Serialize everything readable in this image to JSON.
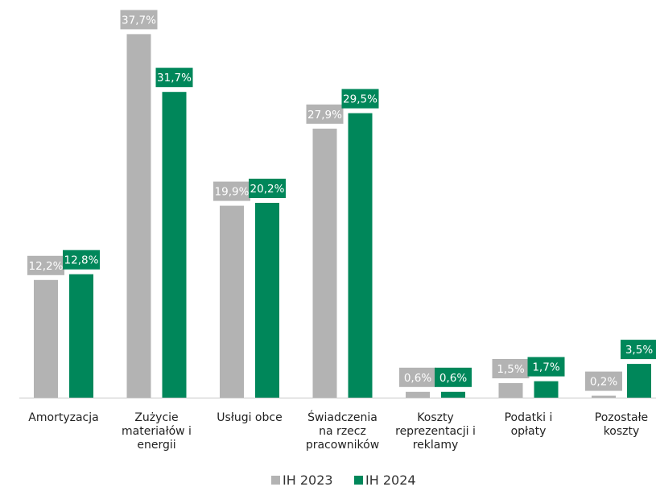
{
  "chart_data": {
    "type": "bar",
    "categories": [
      [
        "Amortyzacja"
      ],
      [
        "Zużycie",
        "materiałów i",
        "energii"
      ],
      [
        "Usługi obce"
      ],
      [
        "Świadczenia",
        "na rzecz",
        "pracowników"
      ],
      [
        "Koszty",
        "reprezentacji i",
        "reklamy"
      ],
      [
        "Podatki i",
        "opłaty"
      ],
      [
        "Pozostałe",
        "koszty"
      ]
    ],
    "series": [
      {
        "name": "IH 2023",
        "color": "#b3b3b3",
        "values": [
          12.2,
          37.7,
          19.9,
          27.9,
          0.6,
          1.5,
          0.2
        ],
        "labels": [
          "12,2%",
          "37,7%",
          "19,9%",
          "27,9%",
          "0,6%",
          "1,5%",
          "0,2%"
        ]
      },
      {
        "name": "IH 2024",
        "color": "#00875a",
        "values": [
          12.8,
          31.7,
          20.2,
          29.5,
          0.6,
          1.7,
          3.5
        ],
        "labels": [
          "12,8%",
          "31,7%",
          "20,2%",
          "29,5%",
          "0,6%",
          "1,7%",
          "3,5%"
        ]
      }
    ],
    "ylim": [
      0,
      41.5
    ],
    "grid": false,
    "legend": "bottom-center",
    "title": "",
    "xlabel": "",
    "ylabel": ""
  }
}
